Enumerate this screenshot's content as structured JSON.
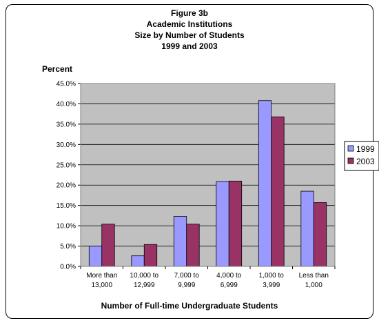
{
  "chart_data": {
    "type": "bar",
    "title_lines": [
      "Figure 3b",
      "Academic Institutions",
      "Size by Number of Students",
      "1999 and 2003"
    ],
    "ylabel": "Percent",
    "xlabel": "Number of Full-time Undergraduate Students",
    "categories": [
      [
        "More than",
        "13,000"
      ],
      [
        "10,000 to",
        "12,999"
      ],
      [
        "7,000 to",
        "9,999"
      ],
      [
        "4,000 to",
        "6,999"
      ],
      [
        "1,000 to",
        "3,999"
      ],
      [
        "Less than",
        "1,000"
      ]
    ],
    "series": [
      {
        "name": "1999",
        "color": "#9999ff",
        "values": [
          5.0,
          2.6,
          12.3,
          20.9,
          40.8,
          18.5
        ]
      },
      {
        "name": "2003",
        "color": "#993366",
        "values": [
          10.4,
          5.4,
          10.4,
          21.0,
          36.8,
          15.7
        ]
      }
    ],
    "ylim": [
      0,
      45
    ],
    "yticks": [
      "0.0%",
      "5.0%",
      "10.0%",
      "15.0%",
      "20.0%",
      "25.0%",
      "30.0%",
      "35.0%",
      "40.0%",
      "45.0%"
    ],
    "grid": true,
    "plot_background": "#c0c0c0",
    "legend_position": "right"
  }
}
